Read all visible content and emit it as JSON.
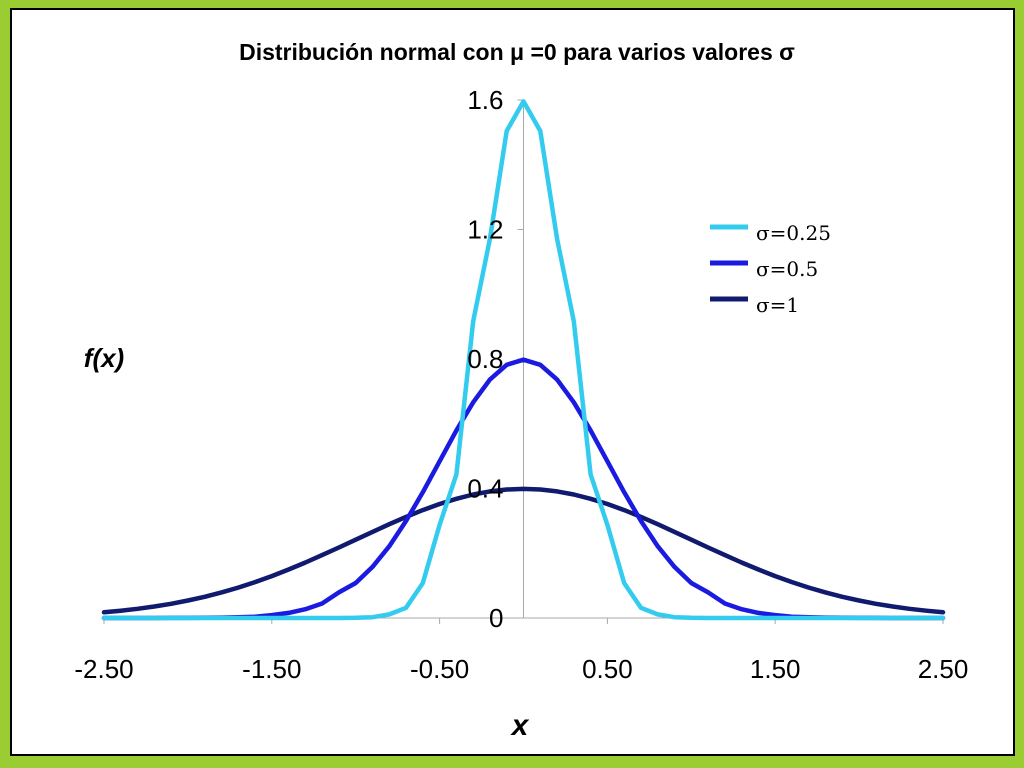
{
  "chart_data": {
    "type": "line",
    "title": "Distribución normal con μ =0 para varios valores σ",
    "xlabel": "x",
    "ylabel": "f(x)",
    "xlim": [
      -2.5,
      2.5
    ],
    "ylim": [
      0,
      1.6
    ],
    "x_ticks": [
      "-2.50",
      "-1.50",
      "-0.50",
      "0.50",
      "1.50",
      "2.50"
    ],
    "y_ticks": [
      "0",
      "0.4",
      "0.8",
      "1.2",
      "1.6"
    ],
    "grid": false,
    "legend_position": "top-right",
    "colors": {
      "s025": "#33ccee",
      "s05": "#1a1ae0",
      "s1": "#101a6e"
    },
    "x": [
      -2.5,
      -2.4,
      -2.3,
      -2.2,
      -2.1,
      -2.0,
      -1.9,
      -1.8,
      -1.7,
      -1.6,
      -1.5,
      -1.4,
      -1.3,
      -1.2,
      -1.1,
      -1.0,
      -0.9,
      -0.8,
      -0.7,
      -0.6,
      -0.5,
      -0.4,
      -0.3,
      -0.2,
      -0.1,
      0.0,
      0.1,
      0.2,
      0.3,
      0.4,
      0.5,
      0.6,
      0.7,
      0.8,
      0.9,
      1.0,
      1.1,
      1.2,
      1.3,
      1.4,
      1.5,
      1.6,
      1.7,
      1.8,
      1.9,
      2.0,
      2.1,
      2.2,
      2.3,
      2.4,
      2.5
    ],
    "series": [
      {
        "name": "σ=0.25",
        "color_key": "s025",
        "values": [
          0,
          0,
          0,
          0,
          0,
          0,
          0,
          0,
          0,
          0,
          0,
          0,
          0,
          0,
          0,
          0.0005,
          0.0024,
          0.0111,
          0.0316,
          0.1079,
          0.2876,
          0.4437,
          0.9167,
          1.1707,
          1.5043,
          1.5958,
          1.5043,
          1.1707,
          0.9167,
          0.4437,
          0.2876,
          0.1079,
          0.0316,
          0.0111,
          0.0024,
          0.0005,
          0,
          0,
          0,
          0,
          0,
          0,
          0,
          0,
          0,
          0,
          0,
          0,
          0,
          0,
          0
        ]
      },
      {
        "name": "σ=0.5",
        "color_key": "s05",
        "values": [
          0,
          0,
          0,
          0.0001,
          0.0002,
          0.0003,
          0.0006,
          0.0012,
          0.0022,
          0.0039,
          0.0089,
          0.0158,
          0.0272,
          0.0448,
          0.0791,
          0.108,
          0.1579,
          0.2218,
          0.2995,
          0.3884,
          0.4839,
          0.5794,
          0.6664,
          0.7365,
          0.7821,
          0.7979,
          0.7821,
          0.7365,
          0.6664,
          0.5794,
          0.4839,
          0.3884,
          0.2995,
          0.2218,
          0.1579,
          0.108,
          0.0791,
          0.0448,
          0.0272,
          0.0158,
          0.0089,
          0.0039,
          0.0022,
          0.0012,
          0.0006,
          0.0003,
          0.0002,
          0.0001,
          0,
          0,
          0
        ]
      },
      {
        "name": "σ=1",
        "color_key": "s1",
        "values": [
          0.0175,
          0.0224,
          0.0283,
          0.0355,
          0.044,
          0.054,
          0.0656,
          0.079,
          0.094,
          0.1109,
          0.1295,
          0.1497,
          0.1714,
          0.1942,
          0.2179,
          0.242,
          0.2661,
          0.2897,
          0.3123,
          0.3332,
          0.3521,
          0.3683,
          0.3814,
          0.391,
          0.397,
          0.3989,
          0.397,
          0.391,
          0.3814,
          0.3683,
          0.3521,
          0.3332,
          0.3123,
          0.2897,
          0.2661,
          0.242,
          0.2179,
          0.1942,
          0.1714,
          0.1497,
          0.1295,
          0.1109,
          0.094,
          0.079,
          0.0656,
          0.054,
          0.044,
          0.0355,
          0.0283,
          0.0224,
          0.0175
        ]
      }
    ]
  }
}
